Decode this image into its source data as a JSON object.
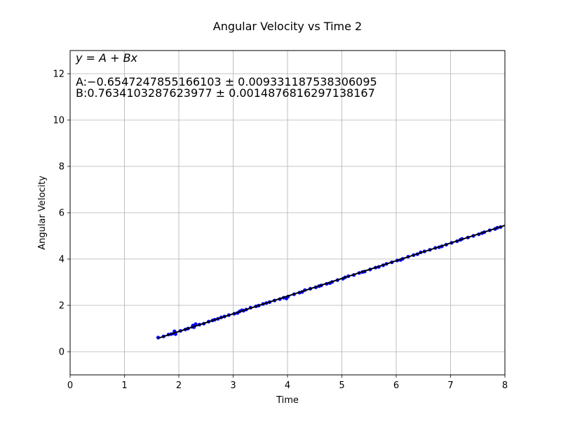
{
  "chart_data": {
    "type": "scatter",
    "title": "Angular Velocity vs Time 2",
    "xlabel": "Time",
    "ylabel": "Angular Velocity",
    "xlim": [
      0,
      8
    ],
    "ylim": [
      -1,
      13
    ],
    "xticks": [
      "0",
      "1",
      "2",
      "3",
      "4",
      "5",
      "6",
      "7",
      "8"
    ],
    "yticks": [
      "0",
      "2",
      "4",
      "6",
      "8",
      "10",
      "12"
    ],
    "grid": true,
    "colors": {
      "points": "#0000ff",
      "fit_line": "#000000",
      "grid": "#b0b0b0"
    },
    "fit": {
      "equation": "y = A + Bx",
      "A_text": "A:−0.6547247855166103 ± 0.009331187538306095",
      "B_text": "B:0.7634103287623977 ± 0.0014876816297138167",
      "A": -0.6547247855166103,
      "B": 0.7634103287623977,
      "x_range": [
        1.62,
        8.0
      ]
    },
    "series": [
      {
        "x": [
          1.62,
          1.72,
          1.81,
          1.86,
          1.91,
          1.92,
          1.93,
          1.94,
          2.03,
          2.12,
          2.17,
          2.25,
          2.26,
          2.28,
          2.31,
          2.38,
          2.46,
          2.55,
          2.62,
          2.66,
          2.72,
          2.78,
          2.84,
          2.92,
          3.02,
          3.08,
          3.12,
          3.16,
          3.19,
          3.24,
          3.32,
          3.42,
          3.47,
          3.55,
          3.61,
          3.67,
          3.76,
          3.86,
          3.93,
          3.98,
          4.01,
          4.12,
          4.22,
          4.27,
          4.32,
          4.42,
          4.52,
          4.58,
          4.62,
          4.72,
          4.78,
          4.82,
          4.92,
          5.02,
          5.06,
          5.12,
          5.22,
          5.32,
          5.38,
          5.42,
          5.52,
          5.62,
          5.68,
          5.76,
          5.82,
          5.92,
          6.02,
          6.08,
          6.12,
          6.22,
          6.32,
          6.39,
          6.45,
          6.52,
          6.62,
          6.72,
          6.79,
          6.84,
          6.92,
          7.02,
          7.12,
          7.18,
          7.21,
          7.32,
          7.42,
          7.52,
          7.58,
          7.62,
          7.72,
          7.82,
          7.86,
          7.92
        ],
        "y": [
          0.61,
          0.66,
          0.74,
          0.76,
          0.79,
          0.88,
          0.82,
          0.76,
          0.9,
          0.96,
          1.0,
          1.07,
          1.13,
          1.06,
          1.19,
          1.17,
          1.21,
          1.3,
          1.35,
          1.38,
          1.42,
          1.48,
          1.52,
          1.58,
          1.64,
          1.67,
          1.74,
          1.79,
          1.77,
          1.82,
          1.9,
          1.96,
          1.99,
          2.06,
          2.1,
          2.14,
          2.21,
          2.27,
          2.33,
          2.3,
          2.38,
          2.48,
          2.55,
          2.58,
          2.66,
          2.72,
          2.78,
          2.83,
          2.86,
          2.93,
          2.96,
          3.01,
          3.09,
          3.15,
          3.21,
          3.26,
          3.31,
          3.4,
          3.44,
          3.46,
          3.55,
          3.63,
          3.66,
          3.73,
          3.79,
          3.86,
          3.94,
          3.96,
          4.01,
          4.1,
          4.17,
          4.21,
          4.29,
          4.33,
          4.4,
          4.48,
          4.51,
          4.55,
          4.62,
          4.7,
          4.77,
          4.83,
          4.87,
          4.93,
          5.0,
          5.07,
          5.12,
          5.16,
          5.24,
          5.3,
          5.35,
          5.38
        ]
      }
    ]
  }
}
